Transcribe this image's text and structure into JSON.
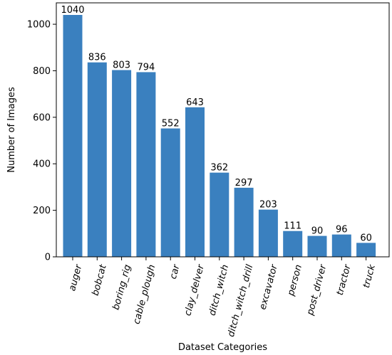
{
  "chart_data": {
    "type": "bar",
    "categories": [
      "auger",
      "bobcat",
      "boring_rig",
      "cable_plough",
      "car",
      "clay_delver",
      "ditch_witch",
      "ditch_witch_drill",
      "excavator",
      "person",
      "post_driver",
      "tractor",
      "truck"
    ],
    "values": [
      1040,
      836,
      803,
      794,
      552,
      643,
      362,
      297,
      203,
      111,
      90,
      96,
      60
    ],
    "value_labels": [
      "1040",
      "836",
      "803",
      "794",
      "552",
      "643",
      "362",
      "297",
      "203",
      "111",
      "90",
      "96",
      "60"
    ],
    "xlabel": "Dataset Categories",
    "ylabel": "Number of Images",
    "yticks": [
      0,
      200,
      400,
      600,
      800,
      1000
    ],
    "ytick_labels": [
      "0",
      "200",
      "400",
      "600",
      "800",
      "1000"
    ],
    "ylim": [
      0,
      1092
    ],
    "grid": false,
    "bar_color": "#3a80bf"
  }
}
